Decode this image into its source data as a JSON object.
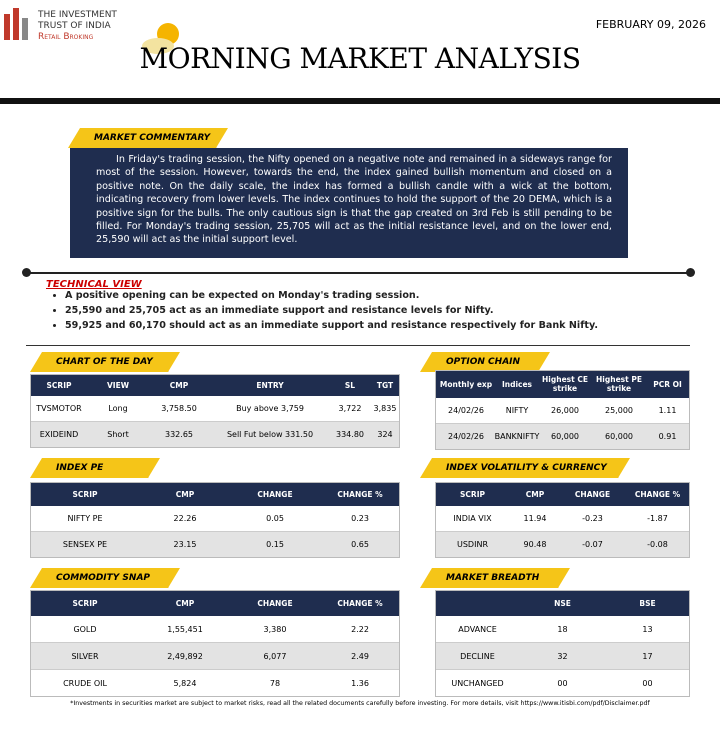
{
  "header": {
    "logo_line1": "THE INVESTMENT",
    "logo_line2": "TRUST OF INDIA",
    "logo_line3": "Retail Broking",
    "date": "FEBRUARY 09, 2026",
    "title": "MORNING MARKET ANALYSIS"
  },
  "market_commentary": {
    "heading": "MARKET COMMENTARY",
    "text": "In Friday's trading session, the Nifty opened on a negative note and remained in a sideways range for most of the session. However, towards the end, the index gained bullish momentum and closed on a positive note. On the daily scale, the index has formed a bullish candle with a wick at the bottom, indicating recovery from lower levels. The index continues to hold the support of the 20 DEMA, which is a positive sign for the bulls. The only cautious sign is that the gap created on 3rd Feb is still pending to be filled. For Monday's trading session, 25,705 will act as the initial resistance level, and on the lower end, 25,590 will act as the initial support level."
  },
  "technical_view": {
    "heading": "TECHNICAL VIEW",
    "bullets": [
      "A positive opening can be expected on Monday's trading session.",
      "25,590 and 25,705 act as an immediate support and resistance levels for Nifty.",
      "59,925 and 60,170 should act as an immediate support and resistance respectively for Bank Nifty."
    ]
  },
  "chart_of_the_day": {
    "heading": "CHART OF THE DAY",
    "columns": [
      "SCRIP",
      "VIEW",
      "CMP",
      "ENTRY",
      "SL",
      "TGT"
    ],
    "rows": [
      [
        "TVSMOTOR",
        "Long",
        "3,758.50",
        "Buy above 3,759",
        "3,722",
        "3,835"
      ],
      [
        "EXIDEIND",
        "Short",
        "332.65",
        "Sell Fut below 331.50",
        "334.80",
        "324"
      ]
    ]
  },
  "option_chain": {
    "heading": "OPTION CHAIN",
    "columns": [
      "Monthly exp",
      "Indices",
      "Highest CE strike",
      "Highest PE strike",
      "PCR OI"
    ],
    "rows": [
      [
        "24/02/26",
        "NIFTY",
        "26,000",
        "25,000",
        "1.11"
      ],
      [
        "24/02/26",
        "BANKNIFTY",
        "60,000",
        "60,000",
        "0.91"
      ]
    ]
  },
  "index_pe": {
    "heading": "INDEX PE",
    "columns": [
      "SCRIP",
      "CMP",
      "CHANGE",
      "CHANGE %"
    ],
    "rows": [
      [
        "NIFTY PE",
        "22.26",
        "0.05",
        "0.23"
      ],
      [
        "SENSEX PE",
        "23.15",
        "0.15",
        "0.65"
      ]
    ]
  },
  "index_volatility": {
    "heading": "INDEX VOLATILITY & CURRENCY",
    "columns": [
      "SCRIP",
      "CMP",
      "CHANGE",
      "CHANGE %"
    ],
    "rows": [
      [
        "INDIA VIX",
        "11.94",
        "-0.23",
        "-1.87"
      ],
      [
        "USDINR",
        "90.48",
        "-0.07",
        "-0.08"
      ]
    ]
  },
  "commodity_snap": {
    "heading": "COMMODITY SNAP",
    "columns": [
      "SCRIP",
      "CMP",
      "CHANGE",
      "CHANGE %"
    ],
    "rows": [
      [
        "GOLD",
        "1,55,451",
        "3,380",
        "2.22"
      ],
      [
        "SILVER",
        "2,49,892",
        "6,077",
        "2.49"
      ],
      [
        "CRUDE OIL",
        "5,824",
        "78",
        "1.36"
      ]
    ]
  },
  "market_breadth": {
    "heading": "MARKET BREADTH",
    "columns": [
      "",
      "NSE",
      "BSE"
    ],
    "rows": [
      [
        "ADVANCE",
        "18",
        "13"
      ],
      [
        "DECLINE",
        "32",
        "17"
      ],
      [
        "UNCHANGED",
        "00",
        "00"
      ]
    ]
  },
  "disclaimer": "*Investments in securities market are subject to market risks, read all the related documents carefully before investing. For more details, visit https://www.itisbi.com/pdf/Disclaimer.pdf"
}
